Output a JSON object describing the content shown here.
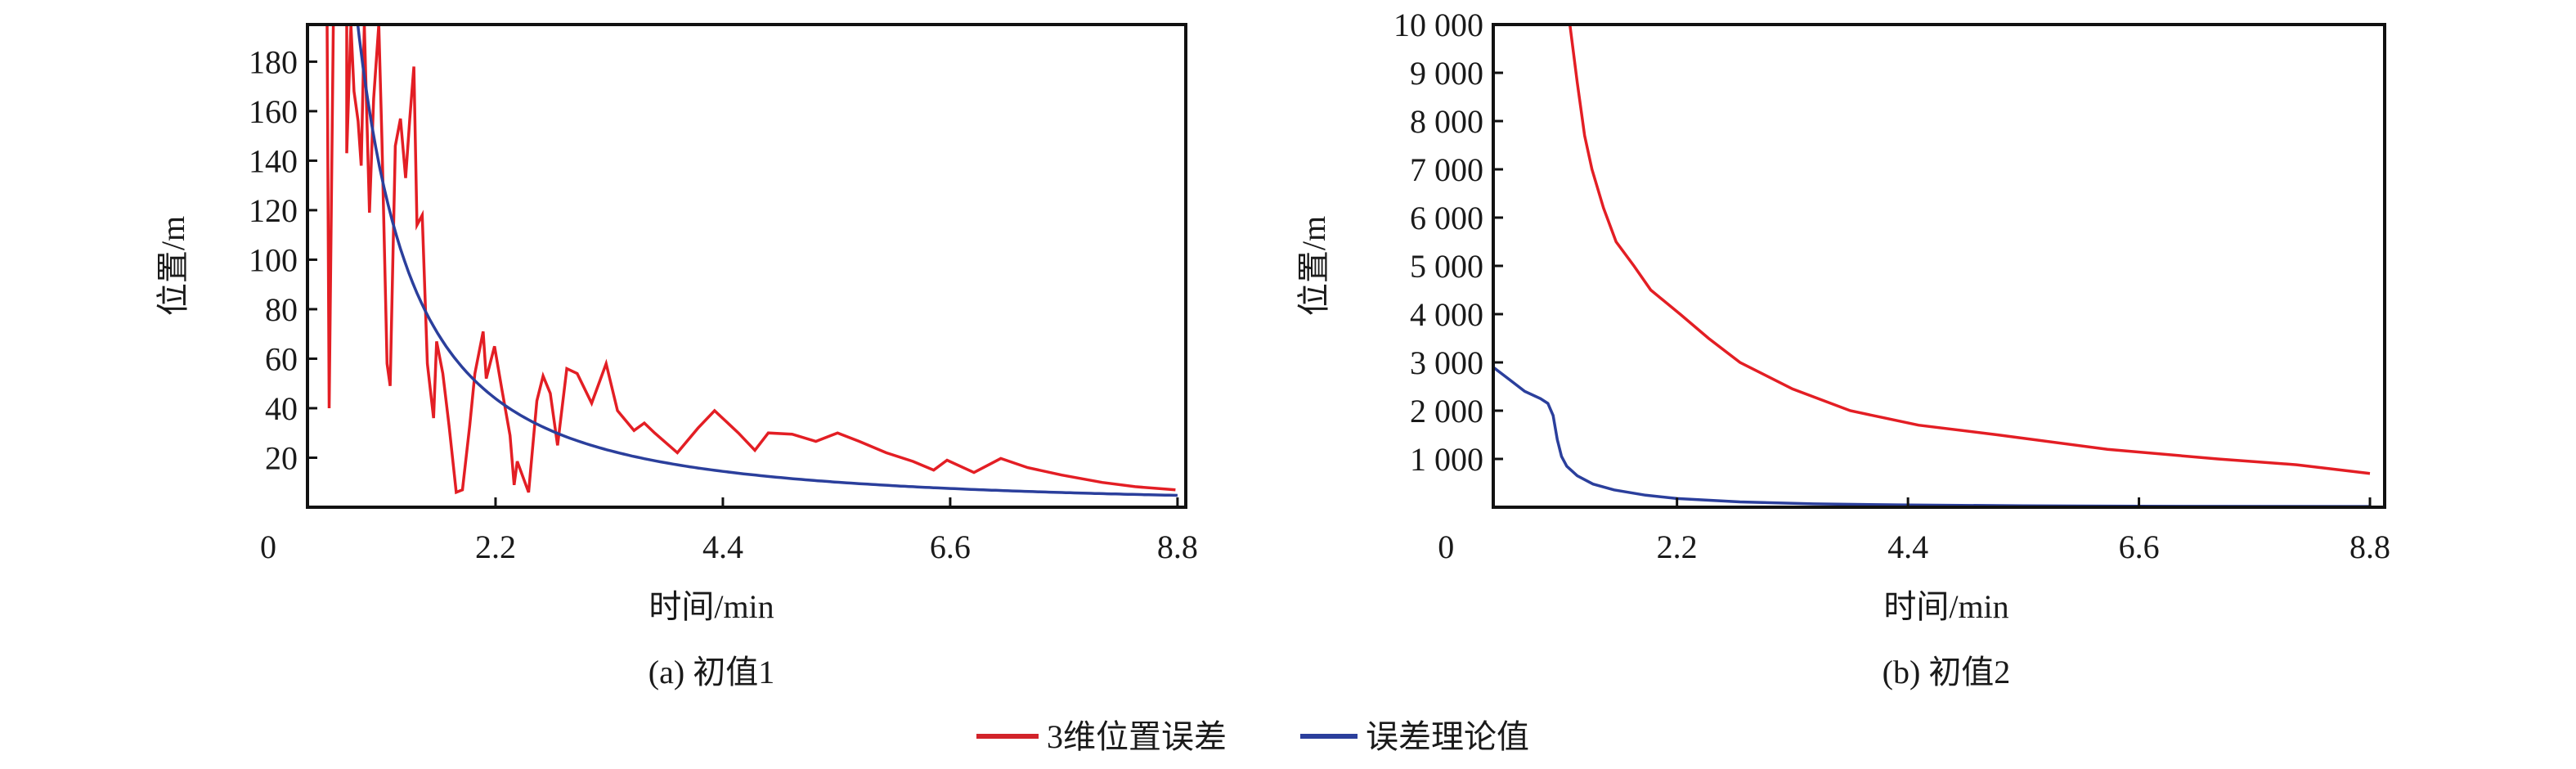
{
  "legend": [
    {
      "label": "3维位置误差",
      "color": "#e31e24"
    },
    {
      "label": "误差理论值",
      "color": "#2b3f9c"
    }
  ],
  "chart_data": [
    {
      "type": "line",
      "caption": "(a) 初值1",
      "xlabel": "时间/min",
      "ylabel": "位置/m",
      "xlim": [
        0.38,
        8.88
      ],
      "ylim": [
        0,
        195
      ],
      "xticks": [
        0,
        2.2,
        4.4,
        6.6,
        8.8
      ],
      "xtick_labels": [
        "0",
        "2.2",
        "4.4",
        "6.6",
        "8.8"
      ],
      "yticks": [
        20,
        40,
        60,
        80,
        100,
        120,
        140,
        160,
        180
      ],
      "ytick_labels": [
        "20",
        "40",
        "60",
        "80",
        "100",
        "120",
        "140",
        "160",
        "180"
      ],
      "series": [
        {
          "name": "3维位置误差",
          "color": "#e31e24",
          "x": [
            0.57,
            0.59,
            0.63,
            0.76,
            0.76,
            0.8,
            0.83,
            0.87,
            0.9,
            0.93,
            0.98,
            1.02,
            1.07,
            1.1,
            1.15,
            1.18,
            1.23,
            1.28,
            1.33,
            1.37,
            1.41,
            1.44,
            1.49,
            1.54,
            1.6,
            1.63,
            1.69,
            1.75,
            1.82,
            1.88,
            1.95,
            2.0,
            2.08,
            2.11,
            2.19,
            2.26,
            2.34,
            2.38,
            2.41,
            2.52,
            2.6,
            2.66,
            2.73,
            2.8,
            2.89,
            2.99,
            3.13,
            3.27,
            3.38,
            3.54,
            3.64,
            3.74,
            3.96,
            4.16,
            4.32,
            4.55,
            4.71,
            4.84,
            5.07,
            5.3,
            5.51,
            5.72,
            5.98,
            6.24,
            6.44,
            6.57,
            6.83,
            7.09,
            7.35,
            7.68,
            8.07,
            8.39,
            8.78
          ],
          "y": [
            195,
            40,
            195,
            195,
            143,
            195,
            168,
            156,
            138,
            195,
            119,
            165,
            195,
            149,
            58,
            49,
            146,
            157,
            133,
            157,
            178,
            114,
            118,
            58,
            36,
            67,
            54,
            33,
            6,
            7,
            33,
            54,
            71,
            52,
            65,
            48,
            29,
            9,
            18.5,
            6,
            43,
            53,
            46,
            25,
            56,
            54,
            42,
            58,
            39,
            31,
            34,
            30,
            22,
            32,
            39,
            30,
            23,
            30,
            29.5,
            26.6,
            30,
            26.6,
            22,
            18.5,
            15,
            19,
            14,
            19.7,
            16,
            13,
            10,
            8.3,
            7
          ]
        },
        {
          "name": "误差理论值",
          "color": "#2b3f9c",
          "formula": "155 / t^1.6",
          "x_start": 0.84,
          "x_end": 8.8
        }
      ]
    },
    {
      "type": "line",
      "caption": "(b) 初值2",
      "xlabel": "时间/min",
      "ylabel": "位置/m",
      "xlim": [
        0.45,
        8.94
      ],
      "ylim": [
        0,
        10000
      ],
      "xticks": [
        0,
        2.2,
        4.4,
        6.6,
        8.8
      ],
      "xtick_labels": [
        "0",
        "2.2",
        "4.4",
        "6.6",
        "8.8"
      ],
      "yticks": [
        1000,
        2000,
        3000,
        4000,
        5000,
        6000,
        7000,
        8000,
        9000,
        10000
      ],
      "ytick_labels": [
        "1 000",
        "2 000",
        "3 000",
        "4 000",
        "5 000",
        "6 000",
        "7 000",
        "8 000",
        "9 000",
        "10 000"
      ],
      "series": [
        {
          "name": "3维位置误差",
          "color": "#e31e24",
          "x": [
            1.18,
            1.25,
            1.32,
            1.39,
            1.5,
            1.62,
            1.79,
            1.95,
            2.23,
            2.5,
            2.8,
            3.3,
            3.85,
            4.5,
            5.25,
            6.3,
            7.35,
            8.1,
            8.8
          ],
          "y": [
            10000,
            8800,
            7700,
            7000,
            6200,
            5500,
            5000,
            4500,
            4000,
            3500,
            3000,
            2450,
            2000,
            1700,
            1500,
            1200,
            1000,
            880,
            700
          ]
        },
        {
          "name": "误差理论值",
          "color": "#2b3f9c",
          "x": [
            0.45,
            0.6,
            0.75,
            0.9,
            0.97,
            1.02,
            1.06,
            1.1,
            1.15,
            1.25,
            1.4,
            1.6,
            1.9,
            2.2,
            2.8,
            3.5,
            4.4,
            5.5,
            6.6,
            8.8
          ],
          "y": [
            2900,
            2650,
            2400,
            2250,
            2150,
            1900,
            1400,
            1050,
            850,
            650,
            480,
            360,
            250,
            180,
            110,
            70,
            45,
            30,
            20,
            15
          ]
        }
      ]
    }
  ]
}
